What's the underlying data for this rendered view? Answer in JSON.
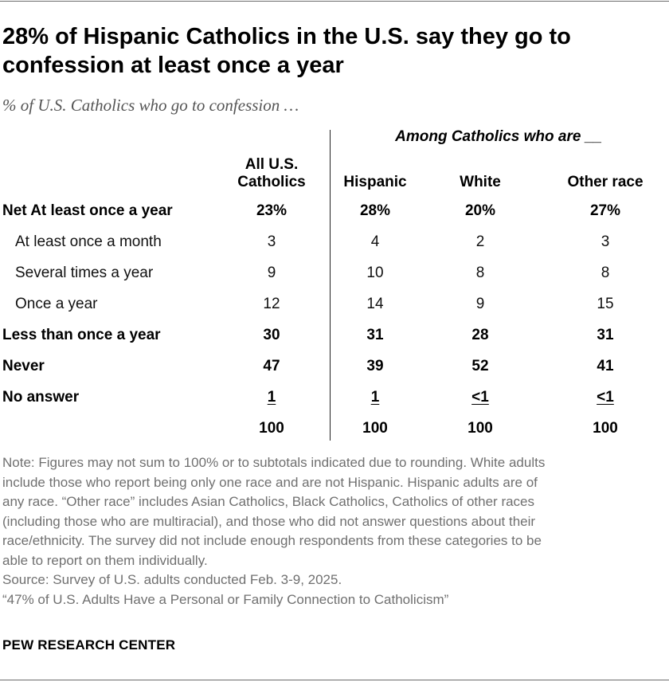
{
  "title": "28% of Hispanic Catholics in the U.S. say they go to confession at least once a year",
  "subtitle": "% of U.S. Catholics who go to confession …",
  "column_group_label": "Among Catholics who are __",
  "columns": [
    "All U.S. Catholics",
    "Hispanic",
    "White",
    "Other race"
  ],
  "column_head_all_line1": "All U.S.",
  "column_head_all_line2": "Catholics",
  "rows": [
    {
      "label": "Net At least once a year",
      "bold": true,
      "indent": false,
      "values": [
        "23%",
        "28%",
        "20%",
        "27%"
      ]
    },
    {
      "label": "At least once a month",
      "bold": false,
      "indent": true,
      "values": [
        "3",
        "4",
        "2",
        "3"
      ]
    },
    {
      "label": "Several times a year",
      "bold": false,
      "indent": true,
      "values": [
        "9",
        "10",
        "8",
        "8"
      ]
    },
    {
      "label": "Once a year",
      "bold": false,
      "indent": true,
      "values": [
        "12",
        "14",
        "9",
        "15"
      ]
    },
    {
      "label": "Less than once a year",
      "bold": true,
      "indent": false,
      "values": [
        "30",
        "31",
        "28",
        "31"
      ]
    },
    {
      "label": "Never",
      "bold": true,
      "indent": false,
      "values": [
        "47",
        "39",
        "52",
        "41"
      ]
    },
    {
      "label": "No answer",
      "bold": true,
      "indent": false,
      "underline": true,
      "values": [
        "1",
        "1",
        "<1",
        "<1"
      ]
    },
    {
      "label": "",
      "bold": true,
      "indent": false,
      "values": [
        "100",
        "100",
        "100",
        "100"
      ]
    }
  ],
  "chart_data": {
    "type": "table",
    "title": "28% of Hispanic Catholics in the U.S. say they go to confession at least once a year",
    "subtitle": "% of U.S. Catholics who go to confession …",
    "columns": [
      "All U.S. Catholics",
      "Hispanic",
      "White",
      "Other race"
    ],
    "rows": [
      {
        "label": "Net At least once a year",
        "values": [
          "23%",
          "28%",
          "20%",
          "27%"
        ]
      },
      {
        "label": "At least once a month",
        "values": [
          "3",
          "4",
          "2",
          "3"
        ]
      },
      {
        "label": "Several times a year",
        "values": [
          "9",
          "10",
          "8",
          "8"
        ]
      },
      {
        "label": "Once a year",
        "values": [
          "12",
          "14",
          "9",
          "15"
        ]
      },
      {
        "label": "Less than once a year",
        "values": [
          "30",
          "31",
          "28",
          "31"
        ]
      },
      {
        "label": "Never",
        "values": [
          "47",
          "39",
          "52",
          "41"
        ]
      },
      {
        "label": "No answer",
        "values": [
          "1",
          "1",
          "<1",
          "<1"
        ]
      },
      {
        "label": "",
        "values": [
          "100",
          "100",
          "100",
          "100"
        ]
      }
    ]
  },
  "notes": [
    "Note: Figures may not sum to 100% or to subtotals indicated due to rounding. White adults",
    "include those who report being only one race and are not Hispanic. Hispanic adults are of",
    "any race. “Other race” includes Asian Catholics, Black Catholics, Catholics of other races",
    "(including those who are multiracial), and those who did not answer questions about their",
    "race/ethnicity. The survey did not include enough respondents from these categories to be",
    "able to report on them individually.",
    "Source: Survey of U.S. adults conducted Feb. 3-9, 2025.",
    "“47% of U.S. Adults Have a Personal or Family Connection to Catholicism”"
  ],
  "brand": "PEW RESEARCH CENTER"
}
